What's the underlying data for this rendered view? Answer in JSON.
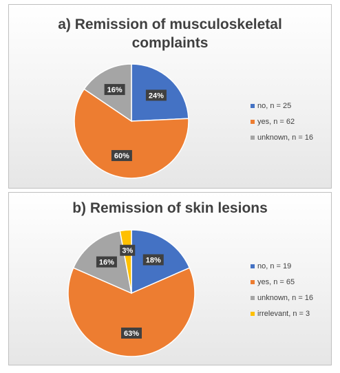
{
  "chart_data": [
    {
      "type": "pie",
      "title": "a) Remission of  musculoskeletal complaints",
      "title_lines": [
        "a) Remission of  musculoskeletal",
        "complaints"
      ],
      "legend_position": "right",
      "slices": [
        {
          "legend": "no, n = 25",
          "value": 25,
          "label": "24%",
          "color": "#4472C4"
        },
        {
          "legend": "yes, n = 62",
          "value": 62,
          "label": "60%",
          "color": "#ED7D31"
        },
        {
          "legend": "unknown, n = 16",
          "value": 16,
          "label": "16%",
          "color": "#A5A5A5"
        }
      ]
    },
    {
      "type": "pie",
      "title": "b) Remission of skin lesions",
      "title_lines": [
        "b) Remission of skin lesions"
      ],
      "legend_position": "right",
      "slices": [
        {
          "legend": "no, n = 19",
          "value": 19,
          "label": "18%",
          "color": "#4472C4"
        },
        {
          "legend": "yes, n = 65",
          "value": 65,
          "label": "63%",
          "color": "#ED7D31"
        },
        {
          "legend": "unknown, n = 16",
          "value": 16,
          "label": "16%",
          "color": "#A5A5A5"
        },
        {
          "legend": "irrelevant, n = 3",
          "value": 3,
          "label": "3%",
          "color": "#FFC000"
        }
      ]
    }
  ]
}
